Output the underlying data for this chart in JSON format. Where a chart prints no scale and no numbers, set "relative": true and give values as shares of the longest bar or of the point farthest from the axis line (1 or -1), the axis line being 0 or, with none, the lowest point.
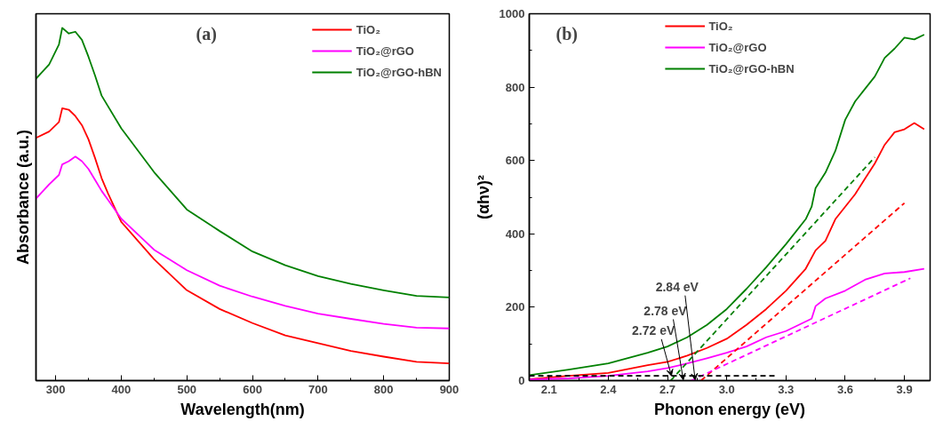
{
  "chart_data": [
    {
      "type": "line",
      "title": "(a)",
      "xlabel": "Wavelength(nm)",
      "ylabel": "Absorbance (a.u.)",
      "relative": true,
      "xlim": [
        270,
        900
      ],
      "xticks": [
        300,
        400,
        500,
        600,
        700,
        800,
        900
      ],
      "legend": "top right",
      "line_style": "solid",
      "marker": "none",
      "grid": false,
      "series": [
        {
          "name": "TiO₂",
          "color": "#ff0000",
          "x": [
            270,
            290,
            305,
            310,
            320,
            330,
            340,
            350,
            360,
            370,
            380,
            400,
            450,
            500,
            550,
            600,
            650,
            700,
            750,
            800,
            850,
            900
          ],
          "values": [
            0.688,
            0.706,
            0.733,
            0.772,
            0.768,
            0.75,
            0.724,
            0.684,
            0.631,
            0.574,
            0.53,
            0.45,
            0.344,
            0.256,
            0.203,
            0.163,
            0.128,
            0.106,
            0.084,
            0.068,
            0.053,
            0.049
          ]
        },
        {
          "name": "TiO₂@rGO",
          "color": "#ff00ff",
          "x": [
            270,
            290,
            305,
            310,
            320,
            330,
            340,
            350,
            360,
            370,
            380,
            400,
            450,
            500,
            550,
            600,
            650,
            700,
            750,
            800,
            850,
            900
          ],
          "values": [
            0.516,
            0.556,
            0.583,
            0.613,
            0.622,
            0.635,
            0.622,
            0.6,
            0.569,
            0.538,
            0.512,
            0.459,
            0.371,
            0.313,
            0.269,
            0.238,
            0.212,
            0.19,
            0.175,
            0.161,
            0.15,
            0.148
          ]
        },
        {
          "name": "TiO₂@rGO-hBN",
          "color": "#008000",
          "x": [
            270,
            290,
            305,
            310,
            320,
            330,
            340,
            350,
            360,
            370,
            400,
            450,
            500,
            550,
            600,
            650,
            700,
            750,
            800,
            850,
            900
          ],
          "values": [
            0.856,
            0.896,
            0.953,
            1.0,
            0.984,
            0.989,
            0.966,
            0.918,
            0.865,
            0.808,
            0.715,
            0.591,
            0.485,
            0.424,
            0.366,
            0.327,
            0.296,
            0.274,
            0.256,
            0.24,
            0.236
          ]
        }
      ]
    },
    {
      "type": "line",
      "title": "(b)",
      "xlabel": "Phonon energy (eV)",
      "ylabel": "(αhν)²",
      "xlim": [
        2.0,
        4.03
      ],
      "xticks": [
        2.1,
        2.4,
        2.7,
        {
          "value": 3.0,
          "label": "3.0"
        },
        3.3,
        3.6,
        3.9
      ],
      "ylim": [
        0,
        1000
      ],
      "yticks": [
        0,
        200,
        400,
        600,
        800,
        1000
      ],
      "legend": "top",
      "line_style": "solid",
      "marker": "none",
      "grid": false,
      "series": [
        {
          "name": "TiO₂",
          "color": "#ff0000",
          "x": [
            2.0,
            2.2,
            2.4,
            2.6,
            2.7,
            2.8,
            2.9,
            3.0,
            3.1,
            3.2,
            3.3,
            3.4,
            3.45,
            3.5,
            3.55,
            3.6,
            3.65,
            3.7,
            3.75,
            3.8,
            3.85,
            3.9,
            3.95,
            4.0
          ],
          "values": [
            4,
            13,
            21,
            42,
            51,
            68,
            89,
            114,
            152,
            195,
            245,
            305,
            355,
            381,
            440,
            474,
            508,
            550,
            592,
            643,
            677,
            685,
            702,
            685
          ]
        },
        {
          "name": "TiO₂@rGO",
          "color": "#ff00ff",
          "x": [
            2.0,
            2.2,
            2.4,
            2.6,
            2.7,
            2.8,
            2.9,
            3.0,
            3.1,
            3.2,
            3.3,
            3.4,
            3.43,
            3.45,
            3.5,
            3.6,
            3.7,
            3.8,
            3.9,
            4.0
          ],
          "values": [
            3,
            6,
            13,
            25,
            34,
            47,
            61,
            76,
            93,
            118,
            135,
            161,
            169,
            203,
            224,
            245,
            275,
            292,
            296,
            305
          ]
        },
        {
          "name": "TiO₂@rGO-hBN",
          "color": "#008000",
          "x": [
            2.0,
            2.2,
            2.4,
            2.6,
            2.7,
            2.8,
            2.9,
            3.0,
            3.1,
            3.2,
            3.3,
            3.4,
            3.43,
            3.45,
            3.5,
            3.55,
            3.6,
            3.65,
            3.7,
            3.75,
            3.8,
            3.85,
            3.9,
            3.95,
            4.0
          ],
          "values": [
            15,
            30,
            47,
            76,
            93,
            118,
            152,
            195,
            250,
            309,
            372,
            440,
            474,
            525,
            567,
            626,
            711,
            761,
            795,
            829,
            880,
            905,
            935,
            930,
            943
          ]
        },
        {
          "color": "#ff0000",
          "line_style": "dashed",
          "x": [
            2.87,
            3.9
          ],
          "values": [
            0,
            484
          ]
        },
        {
          "color": "#ff00ff",
          "line_style": "dashed",
          "x": [
            2.82,
            3.93
          ],
          "values": [
            0,
            279
          ]
        },
        {
          "color": "#008000",
          "line_style": "dashed",
          "x": [
            2.716,
            3.75
          ],
          "values": [
            0,
            609
          ]
        },
        {
          "color": "#000000",
          "line_style": "dashed",
          "x": [
            2.0,
            3.25
          ],
          "values": [
            13,
            13
          ]
        }
      ],
      "annotations": [
        {
          "text": "2.72 eV",
          "x": 2.72,
          "y": 13
        },
        {
          "text": "2.78 eV",
          "x": 2.78,
          "y": 2
        },
        {
          "text": "2.84 eV",
          "x": 2.84,
          "y": 2
        }
      ]
    }
  ]
}
